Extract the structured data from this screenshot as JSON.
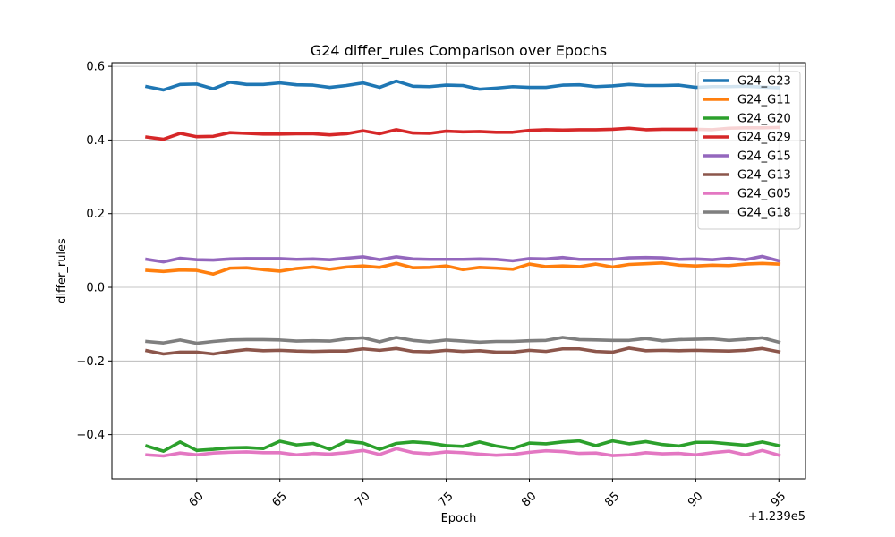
{
  "chart_data": {
    "type": "line",
    "title": "G24 differ_rules Comparison over Epochs",
    "xlabel": "Epoch",
    "ylabel": "differ_rules",
    "x_offset_label": "+1.239e5",
    "xlim": [
      123954.9,
      123996.6
    ],
    "ylim": [
      -0.52,
      0.61
    ],
    "x_ticks": [
      123960,
      123965,
      123970,
      123975,
      123980,
      123985,
      123990,
      123995
    ],
    "x_tick_labels": [
      "60",
      "65",
      "70",
      "75",
      "80",
      "85",
      "90",
      "95"
    ],
    "y_ticks": [
      -0.4,
      -0.2,
      0.0,
      0.2,
      0.4,
      0.6
    ],
    "y_tick_labels": [
      "−0.4",
      "−0.2",
      "0.0",
      "0.2",
      "0.4",
      "0.6"
    ],
    "grid": true,
    "legend_position": "top-right",
    "x": [
      123957,
      123958,
      123959,
      123960,
      123961,
      123962,
      123963,
      123964,
      123965,
      123966,
      123967,
      123968,
      123969,
      123970,
      123971,
      123972,
      123973,
      123974,
      123975,
      123976,
      123977,
      123978,
      123979,
      123980,
      123981,
      123982,
      123983,
      123984,
      123985,
      123986,
      123987,
      123988,
      123989,
      123990,
      123991,
      123992,
      123993,
      123994,
      123995
    ],
    "series": [
      {
        "name": "G24_G23",
        "color": "#1f77b4",
        "values": [
          0.545,
          0.536,
          0.551,
          0.552,
          0.539,
          0.557,
          0.551,
          0.551,
          0.555,
          0.55,
          0.549,
          0.543,
          0.548,
          0.555,
          0.543,
          0.56,
          0.546,
          0.545,
          0.549,
          0.548,
          0.538,
          0.541,
          0.545,
          0.543,
          0.543,
          0.549,
          0.55,
          0.545,
          0.547,
          0.551,
          0.548,
          0.548,
          0.549,
          0.543,
          0.545,
          0.545,
          0.546,
          0.544,
          0.542
        ]
      },
      {
        "name": "G24_G11",
        "color": "#ff7f0e",
        "values": [
          0.046,
          0.043,
          0.047,
          0.046,
          0.036,
          0.052,
          0.053,
          0.048,
          0.044,
          0.051,
          0.055,
          0.049,
          0.055,
          0.058,
          0.054,
          0.065,
          0.053,
          0.054,
          0.058,
          0.048,
          0.054,
          0.052,
          0.049,
          0.063,
          0.056,
          0.058,
          0.056,
          0.063,
          0.055,
          0.062,
          0.064,
          0.066,
          0.06,
          0.058,
          0.06,
          0.059,
          0.063,
          0.065,
          0.063
        ]
      },
      {
        "name": "G24_G20",
        "color": "#2ca02c",
        "values": [
          -0.431,
          -0.445,
          -0.42,
          -0.443,
          -0.44,
          -0.436,
          -0.435,
          -0.438,
          -0.418,
          -0.428,
          -0.424,
          -0.44,
          -0.418,
          -0.423,
          -0.44,
          -0.424,
          -0.42,
          -0.423,
          -0.43,
          -0.432,
          -0.42,
          -0.431,
          -0.438,
          -0.423,
          -0.425,
          -0.42,
          -0.417,
          -0.43,
          -0.417,
          -0.425,
          -0.419,
          -0.427,
          -0.431,
          -0.421,
          -0.421,
          -0.425,
          -0.429,
          -0.42,
          -0.43
        ]
      },
      {
        "name": "G24_G29",
        "color": "#d62728",
        "values": [
          0.408,
          0.402,
          0.418,
          0.409,
          0.41,
          0.42,
          0.418,
          0.416,
          0.416,
          0.417,
          0.417,
          0.414,
          0.417,
          0.425,
          0.417,
          0.428,
          0.419,
          0.418,
          0.424,
          0.422,
          0.423,
          0.421,
          0.421,
          0.426,
          0.428,
          0.427,
          0.428,
          0.428,
          0.429,
          0.432,
          0.428,
          0.429,
          0.429,
          0.429,
          0.428,
          0.432,
          0.433,
          0.433,
          0.434
        ]
      },
      {
        "name": "G24_G15",
        "color": "#9467bd",
        "values": [
          0.076,
          0.069,
          0.079,
          0.075,
          0.074,
          0.077,
          0.078,
          0.078,
          0.078,
          0.076,
          0.077,
          0.075,
          0.079,
          0.083,
          0.075,
          0.083,
          0.077,
          0.076,
          0.076,
          0.076,
          0.077,
          0.076,
          0.072,
          0.078,
          0.077,
          0.081,
          0.076,
          0.076,
          0.076,
          0.08,
          0.081,
          0.08,
          0.076,
          0.077,
          0.075,
          0.079,
          0.075,
          0.084,
          0.072
        ]
      },
      {
        "name": "G24_G13",
        "color": "#8c564b",
        "values": [
          -0.172,
          -0.181,
          -0.176,
          -0.176,
          -0.181,
          -0.174,
          -0.169,
          -0.172,
          -0.171,
          -0.173,
          -0.174,
          -0.173,
          -0.173,
          -0.167,
          -0.171,
          -0.166,
          -0.174,
          -0.175,
          -0.171,
          -0.174,
          -0.172,
          -0.176,
          -0.176,
          -0.171,
          -0.174,
          -0.167,
          -0.167,
          -0.174,
          -0.176,
          -0.165,
          -0.172,
          -0.171,
          -0.172,
          -0.171,
          -0.172,
          -0.173,
          -0.171,
          -0.166,
          -0.175
        ]
      },
      {
        "name": "G24_G05",
        "color": "#e377c2",
        "values": [
          -0.455,
          -0.458,
          -0.45,
          -0.455,
          -0.45,
          -0.448,
          -0.447,
          -0.449,
          -0.449,
          -0.455,
          -0.451,
          -0.453,
          -0.449,
          -0.443,
          -0.454,
          -0.438,
          -0.449,
          -0.452,
          -0.447,
          -0.449,
          -0.453,
          -0.456,
          -0.454,
          -0.448,
          -0.444,
          -0.446,
          -0.451,
          -0.45,
          -0.457,
          -0.455,
          -0.449,
          -0.452,
          -0.451,
          -0.455,
          -0.449,
          -0.445,
          -0.455,
          -0.443,
          -0.456
        ]
      },
      {
        "name": "G24_G18",
        "color": "#7f7f7f",
        "values": [
          -0.147,
          -0.151,
          -0.143,
          -0.152,
          -0.147,
          -0.143,
          -0.142,
          -0.142,
          -0.143,
          -0.146,
          -0.145,
          -0.146,
          -0.14,
          -0.137,
          -0.148,
          -0.136,
          -0.144,
          -0.148,
          -0.143,
          -0.146,
          -0.149,
          -0.147,
          -0.147,
          -0.145,
          -0.144,
          -0.136,
          -0.142,
          -0.143,
          -0.144,
          -0.144,
          -0.139,
          -0.145,
          -0.142,
          -0.141,
          -0.14,
          -0.144,
          -0.141,
          -0.137,
          -0.149
        ]
      }
    ]
  }
}
